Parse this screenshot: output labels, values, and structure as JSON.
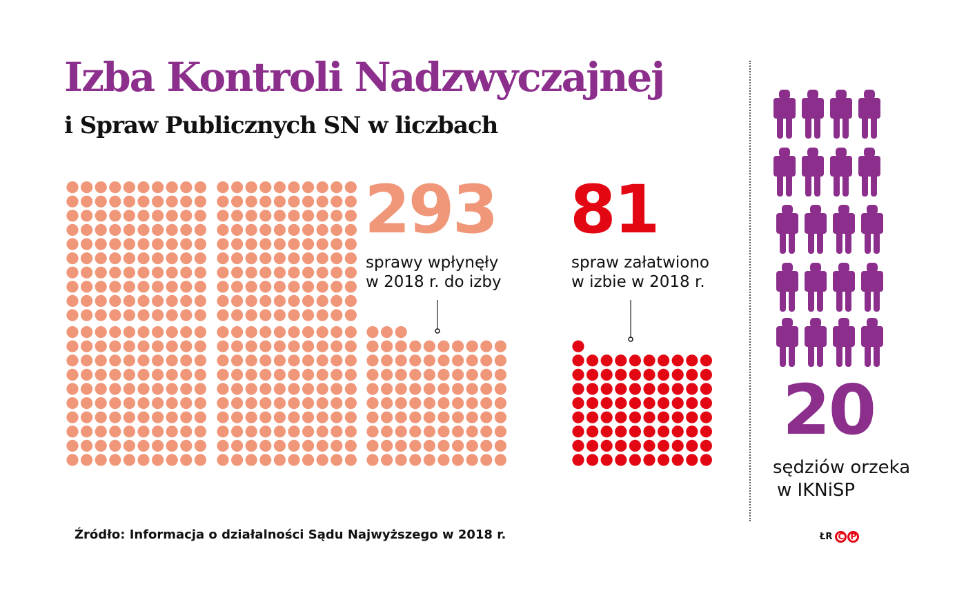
{
  "title": "Izba Kontroli Nadzwyczajnej",
  "subtitle": "i Spraw Publicznych SN w liczbach",
  "chart_data": [
    {
      "type": "dot-matrix",
      "value": 293,
      "value_label": "293",
      "caption_line1": "sprawy wpłynęły",
      "caption_line2": "w 2018 r. do izby",
      "color": "#f0977a"
    },
    {
      "type": "dot-matrix",
      "value": 81,
      "value_label": "81",
      "caption_line1": "spraw załatwiono",
      "caption_line2": "w izbie w 2018 r.",
      "color": "#e30613"
    },
    {
      "type": "pictogram",
      "value": 20,
      "value_label": "20",
      "icon": "person-icon",
      "caption_line1": "sędziów orzeka",
      "caption_line2": "w IKNiSP",
      "color": "#8b2e8c"
    }
  ],
  "source": "Źródło: Informacja o działalności Sądu Najwyższego w 2018 r.",
  "logo": {
    "initials": "ŁR",
    "mark_c": "C",
    "mark_p": "P"
  }
}
